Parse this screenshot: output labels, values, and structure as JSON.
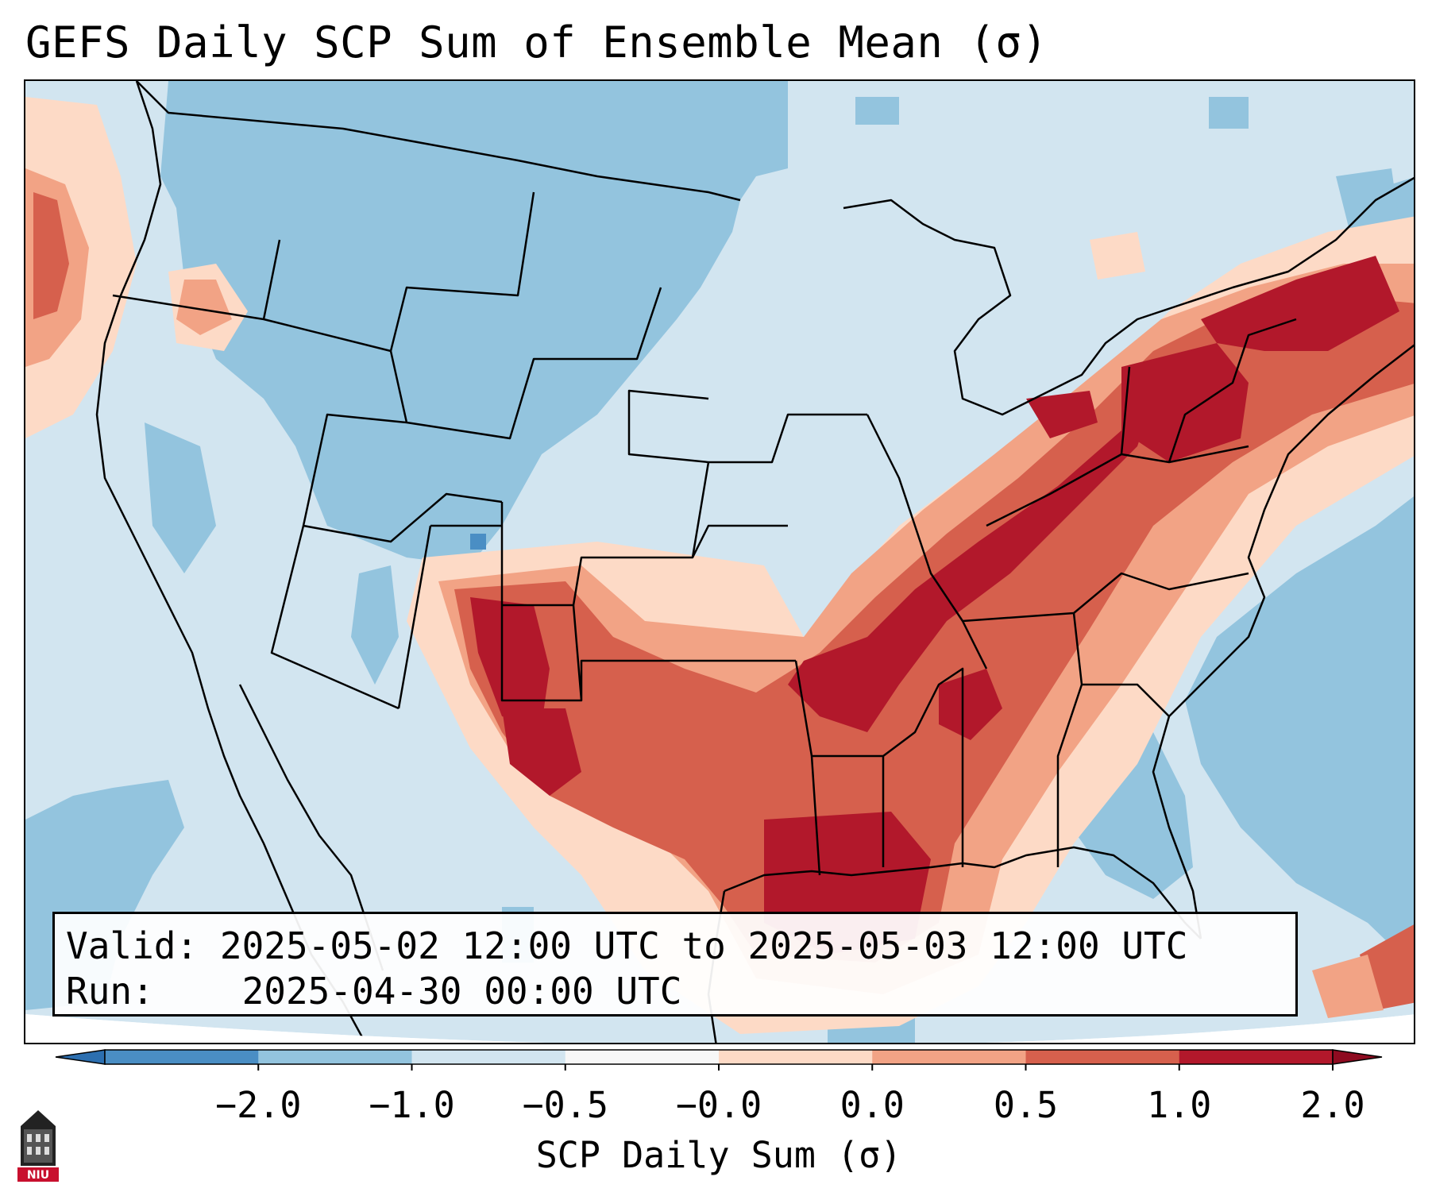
{
  "title": "GEFS Daily SCP Sum of Ensemble Mean (σ)",
  "info": {
    "valid_label": "Valid:",
    "valid_value": "2025-05-02 12:00 UTC to 2025-05-03 12:00 UTC",
    "run_label": "Run:",
    "run_value": "2025-04-30 00:00 UTC"
  },
  "colorbar": {
    "label": "SCP Daily Sum (σ)",
    "ticks": [
      "−2.0",
      "−1.0",
      "−0.5",
      "−0.0",
      "0.0",
      "0.5",
      "1.0",
      "2.0"
    ],
    "colors": [
      "#4a8ec4",
      "#93c4de",
      "#d2e5f0",
      "#f7f7f7",
      "#fddac6",
      "#f2a385",
      "#d6604d",
      "#b2182b"
    ],
    "under_color": "#2c6fb0",
    "over_color": "#8e0b20"
  },
  "logo": {
    "text": "NIU",
    "color": "#c8102e"
  },
  "colors": {
    "border": "#000000",
    "ocean": "#ffffff"
  }
}
